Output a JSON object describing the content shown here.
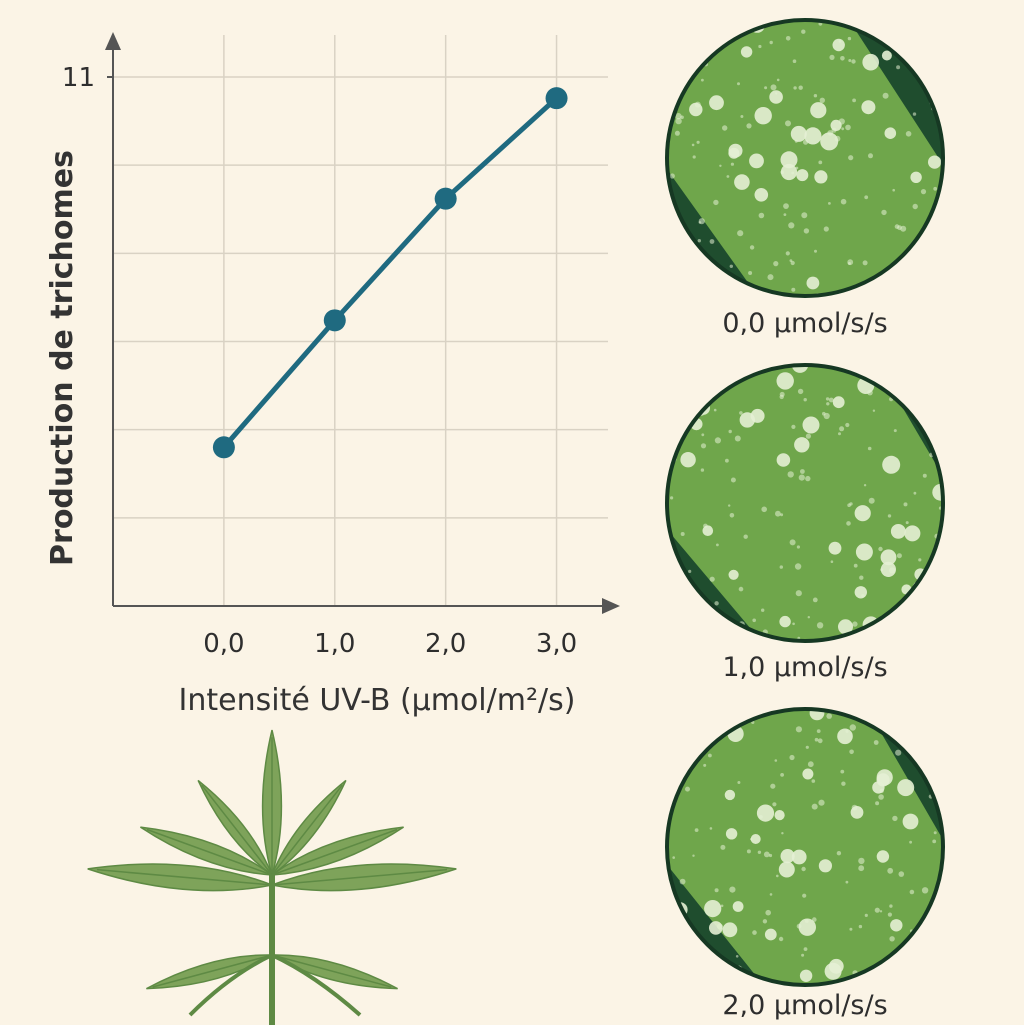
{
  "chart_data": {
    "type": "line",
    "x": [
      0.0,
      1.0,
      2.0,
      3.0
    ],
    "x_tick_labels": [
      "0,0",
      "1,0",
      "2,0",
      "3,0"
    ],
    "y_tick_labels": [
      "11"
    ],
    "series": [
      {
        "values": [
          4.0,
          6.4,
          8.7,
          10.6
        ]
      }
    ],
    "xlabel": "Intensité UV-B (µmol/m²/s)",
    "ylabel": "Production de trichomes",
    "xlim": [
      -1.0,
      3.5
    ],
    "ylim": [
      1.0,
      11.0
    ],
    "grid": true,
    "line_color": "#1f6a80",
    "marker_color": "#1f6a80"
  },
  "micrographs": [
    {
      "label": "0,0 µmol/s/s"
    },
    {
      "label": "1,0 µmol/s/s"
    },
    {
      "label": "2,0 µmol/s/s"
    }
  ],
  "colors": {
    "background": "#fbf4e6",
    "leaf_dark": "#1f4d2e",
    "leaf_surface": "#6fa64b",
    "trichome": "#e4f0d4",
    "plant": "#7ea35a"
  },
  "icons": [
    "cannabis-plant-icon"
  ]
}
